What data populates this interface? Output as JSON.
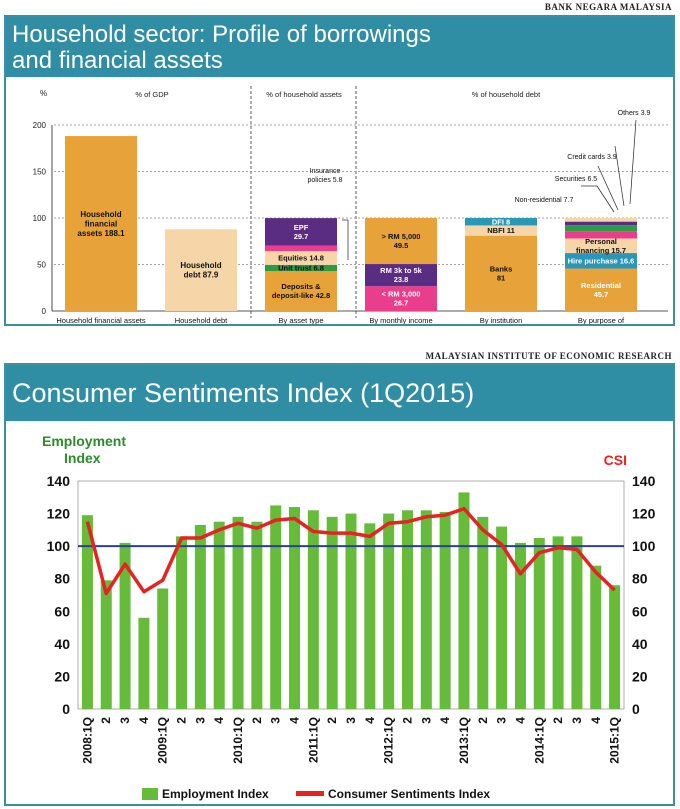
{
  "chart1": {
    "source": "BANK NEGARA MALAYSIA",
    "title_line1": "Household sector: Profile of borrowings",
    "title_line2": "and financial assets",
    "y_unit": "%",
    "yticks": [
      0,
      50,
      100,
      150,
      200
    ],
    "ylim": [
      0,
      200
    ],
    "section_labels": [
      "% of GDP",
      "% of household assets",
      "% of household debt"
    ],
    "categories": [
      "Household financial assets",
      "Household debt",
      "By asset type",
      "By monthly income",
      "By institution",
      "By purpose of financing"
    ],
    "chart_data": {
      "type": "bar",
      "stacks": [
        {
          "category": "Household financial assets",
          "segments": [
            {
              "label": "Household financial assets 188.1",
              "value": 188.1,
              "color": "#e8a23a"
            }
          ]
        },
        {
          "category": "Household debt",
          "segments": [
            {
              "label": "Household debt 87.9",
              "value": 87.9,
              "color": "#f6d6a8"
            }
          ]
        },
        {
          "category": "By asset type",
          "segments": [
            {
              "label": "Deposits & deposit-like 42.8",
              "value": 42.8,
              "color": "#e8a23a"
            },
            {
              "label": "Unit trust 6.8",
              "value": 6.8,
              "color": "#2d9a46"
            },
            {
              "label": "Equities 14.8",
              "value": 14.8,
              "color": "#f6d6a8"
            },
            {
              "label": "Insurance policies 5.8",
              "value": 5.8,
              "color": "#e83e8c"
            },
            {
              "label": "EPF 29.7",
              "value": 29.7,
              "color": "#5a2d82"
            }
          ]
        },
        {
          "category": "By monthly income",
          "segments": [
            {
              "label": "< RM 3,000 26.7",
              "value": 26.7,
              "color": "#e83e8c"
            },
            {
              "label": "RM 3k to 5k 23.8",
              "value": 23.8,
              "color": "#5a2d82"
            },
            {
              "label": "> RM 5,000 49.5",
              "value": 49.5,
              "color": "#e8a23a"
            }
          ]
        },
        {
          "category": "By institution",
          "segments": [
            {
              "label": "Banks 81",
              "value": 81,
              "color": "#e8a23a"
            },
            {
              "label": "NBFI 11",
              "value": 11,
              "color": "#f6d6a8"
            },
            {
              "label": "DFI 8",
              "value": 8,
              "color": "#2a97b8"
            }
          ]
        },
        {
          "category": "By purpose of financing",
          "segments": [
            {
              "label": "Residential 45.7",
              "value": 45.7,
              "color": "#e8a23a"
            },
            {
              "label": "Hire purchase 16.6",
              "value": 16.6,
              "color": "#2a97b8"
            },
            {
              "label": "Personal financing 15.7",
              "value": 15.7,
              "color": "#f6d6a8"
            },
            {
              "label": "Non-residential 7.7",
              "value": 7.7,
              "color": "#e83e8c"
            },
            {
              "label": "Securities 6.5",
              "value": 6.5,
              "color": "#2d9a46"
            },
            {
              "label": "Credit cards 3.9",
              "value": 3.9,
              "color": "#5a2d82"
            },
            {
              "label": "Others 3.9",
              "value": 3.9,
              "color": "#f6d6a8"
            }
          ]
        }
      ]
    }
  },
  "chart2": {
    "source": "MALAYSIAN INSTITUTE OF ECONOMIC RESEARCH",
    "title": "Consumer Sentiments Index (1Q2015)",
    "left_axis_line1": "Employment",
    "left_axis_line2": "Index",
    "right_axis_label": "CSI",
    "yticks": [
      0,
      20,
      40,
      60,
      80,
      100,
      120,
      140
    ],
    "ylim": [
      0,
      140
    ],
    "reference_line": 100,
    "legend": {
      "bar": "Employment Index",
      "line": "Consumer Sentiments Index"
    },
    "chart_data": {
      "type": "bar+line",
      "x": [
        "2008:1Q",
        "2",
        "3",
        "4",
        "2009:1Q",
        "2",
        "3",
        "4",
        "2010:1Q",
        "2",
        "3",
        "4",
        "2011:1Q",
        "2",
        "3",
        "4",
        "2012:1Q",
        "2",
        "3",
        "4",
        "2013:1Q",
        "2",
        "3",
        "4",
        "2014:1Q",
        "2",
        "3",
        "4",
        "2015:1Q"
      ],
      "series": [
        {
          "name": "Employment Index",
          "type": "bar",
          "color": "#66bb3a",
          "values": [
            119,
            79,
            102,
            56,
            74,
            106,
            113,
            115,
            118,
            115,
            125,
            124,
            122,
            118,
            120,
            114,
            120,
            122,
            122,
            121,
            133,
            118,
            112,
            102,
            105,
            106,
            106,
            88,
            76
          ]
        },
        {
          "name": "Consumer Sentiments Index",
          "type": "line",
          "color": "#e52322",
          "values": [
            115,
            71,
            89,
            72,
            79,
            105,
            105,
            110,
            114,
            111,
            116,
            117,
            109,
            108,
            108,
            106,
            114,
            115,
            118,
            119,
            123,
            110,
            101,
            83,
            96,
            99,
            98,
            84,
            73
          ]
        }
      ]
    }
  }
}
